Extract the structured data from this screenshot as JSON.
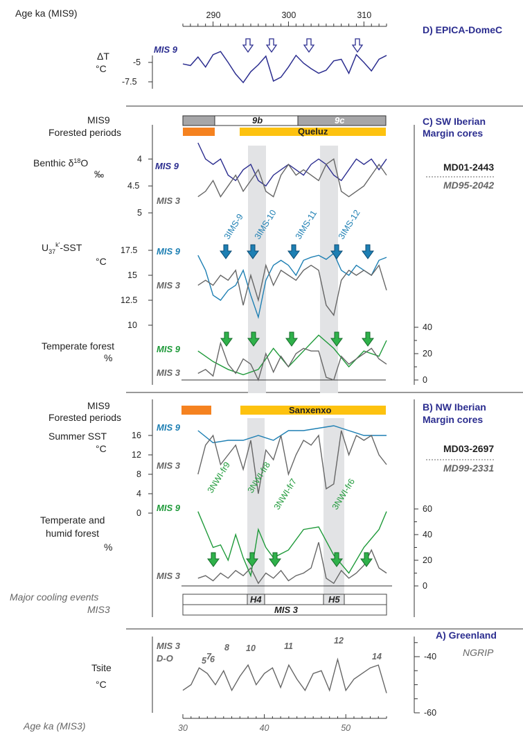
{
  "figure": {
    "panel_d_title": "D) EPICA-DomeC",
    "panel_c_title_1": "C) SW Iberian",
    "panel_c_title_2": "Margin cores",
    "panel_b_title_1": "B) NW Iberian",
    "panel_b_title_2": "Margin cores",
    "panel_a_title": "A) Greenland",
    "ngrip": "NGRIP",
    "core_md01": "MD01-2443",
    "core_md95": "MD95-2042",
    "core_md03": "MD03-2697",
    "core_md99": "MD99-2331",
    "age_mis9": "Age ka (MIS9)",
    "age_mis3": "Age ka (MIS3)",
    "dt_label": "ΔT",
    "degc": "°C",
    "mis9_fp_1": "MIS9",
    "mis9_fp_2": "Forested periods",
    "benthic_label": "Benthic δ18O",
    "permil": "‰",
    "sst_label": "U37k'-SST",
    "temp_forest": "Temperate forest",
    "percent": "%",
    "summer_sst": "Summer SST",
    "th_forest_1": "Temperate and",
    "th_forest_2": "humid forest",
    "major_cooling_1": "Major cooling events",
    "major_cooling_2": "MIS3",
    "tsite": "Tsite",
    "mis9": "MIS 9",
    "mis3": "MIS 3",
    "mis3_do_1": "MIS 3",
    "mis3_do_2": "D-O",
    "band_9b": "9b",
    "band_9c": "9c",
    "queluz": "Queluz",
    "sanxenxo": "Sanxenxo",
    "h4": "H4",
    "h5": "H5"
  },
  "chart_data": [
    {
      "type": "line",
      "panel": "D) EPICA-DomeC",
      "ylabel": "ΔT °C",
      "x_axis": "Age ka (MIS9)",
      "xlim": [
        286,
        314
      ],
      "x_ticks": [
        290,
        300,
        310
      ],
      "y_ticks": [
        -5,
        -7.5
      ],
      "series": [
        {
          "name": "MIS 9",
          "color": "#2b2d8f",
          "x": [
            286,
            287,
            288,
            289,
            290,
            291,
            292,
            293,
            294,
            295,
            296,
            297,
            298,
            299,
            300,
            301,
            302,
            303,
            304,
            305,
            306,
            307,
            308,
            309,
            310,
            311,
            312,
            313
          ],
          "values": [
            -5.2,
            -5.4,
            -4.3,
            -5.6,
            -4.0,
            -3.6,
            -5.0,
            -6.5,
            -7.6,
            -6.2,
            -5.3,
            -4.2,
            -7.4,
            -6.9,
            -5.6,
            -4.1,
            -5.1,
            -5.8,
            -6.4,
            -6.0,
            -4.8,
            -4.6,
            -6.4,
            -4.0,
            -5.0,
            -6.1,
            -4.6,
            -4.1
          ]
        }
      ],
      "annotations": [
        "cooling-arrow 293",
        "cooling-arrow 297",
        "cooling-arrow 302",
        "cooling-arrow 308"
      ]
    },
    {
      "type": "line",
      "panel": "C) SW Iberian Margin cores",
      "ylabel": "Benthic δ18O ‰",
      "y_ticks": [
        4,
        4.5,
        5
      ],
      "series": [
        {
          "name": "MIS 9",
          "color": "#2b2d8f",
          "x": [
            288,
            289,
            290,
            291,
            292,
            293,
            294,
            295,
            296,
            297,
            298,
            299,
            300,
            301,
            302,
            303,
            304,
            305,
            306,
            307,
            308,
            309,
            310,
            311,
            312,
            313
          ],
          "values": [
            3.7,
            4.0,
            4.1,
            4.0,
            4.3,
            4.4,
            4.2,
            4.1,
            4.4,
            4.5,
            4.3,
            4.2,
            4.1,
            4.2,
            4.3,
            4.1,
            4.0,
            4.1,
            4.3,
            4.4,
            4.2,
            4.0,
            4.1,
            4.0,
            4.2,
            4.0
          ]
        },
        {
          "name": "MIS 3",
          "color": "#666666",
          "x": [
            288,
            289,
            290,
            291,
            292,
            293,
            294,
            295,
            296,
            297,
            298,
            299,
            300,
            301,
            302,
            303,
            304,
            305,
            306,
            307,
            308,
            309,
            310,
            311,
            312,
            313
          ],
          "values": [
            4.7,
            4.6,
            4.4,
            4.7,
            4.5,
            4.3,
            4.6,
            4.4,
            4.2,
            4.6,
            4.7,
            4.3,
            4.1,
            4.3,
            4.2,
            4.3,
            4.4,
            4.1,
            4.0,
            4.6,
            4.7,
            4.6,
            4.5,
            4.3,
            4.1,
            4.3
          ]
        }
      ]
    },
    {
      "type": "line",
      "panel": "C) SW Iberian Margin cores",
      "ylabel": "U37k'-SST °C",
      "y_ticks": [
        17.5,
        15,
        12.5,
        10
      ],
      "series": [
        {
          "name": "MIS 9",
          "color": "#1d7fb3",
          "x": [
            288,
            289,
            290,
            291,
            292,
            293,
            294,
            295,
            296,
            297,
            298,
            299,
            300,
            301,
            302,
            303,
            304,
            305,
            306,
            307,
            308,
            309,
            310,
            311,
            312,
            313
          ],
          "values": [
            17.0,
            15.5,
            13.0,
            12.5,
            13.5,
            14.0,
            15.5,
            13.0,
            10.8,
            14.5,
            16.0,
            16.5,
            16.0,
            15.0,
            16.5,
            16.8,
            17.0,
            16.6,
            17.2,
            15.5,
            15.0,
            16.0,
            15.5,
            15.0,
            16.5,
            16.8
          ]
        },
        {
          "name": "MIS 3",
          "color": "#666666",
          "x": [
            288,
            289,
            290,
            291,
            292,
            293,
            294,
            295,
            296,
            297,
            298,
            299,
            300,
            301,
            302,
            303,
            304,
            305,
            306,
            307,
            308,
            309,
            310,
            311,
            312,
            313
          ],
          "values": [
            14.0,
            14.5,
            14.0,
            15.0,
            14.5,
            15.5,
            12.0,
            15.0,
            12.5,
            16.0,
            14.0,
            15.5,
            15.0,
            14.5,
            15.5,
            16.0,
            15.5,
            12.0,
            11.0,
            14.5,
            15.5,
            15.0,
            15.5,
            15.0,
            16.0,
            13.5
          ]
        }
      ],
      "annotations": [
        "3IMS-9",
        "3IMS-10",
        "3IMS-11",
        "3IMS-12"
      ]
    },
    {
      "type": "line",
      "panel": "C) SW Iberian Margin cores",
      "ylabel": "Temperate forest %",
      "y_ticks": [
        0,
        20,
        40
      ],
      "series": [
        {
          "name": "MIS 9",
          "color": "#1f9a3a",
          "x": [
            288,
            290,
            292,
            294,
            296,
            298,
            300,
            302,
            304,
            306,
            308,
            310,
            312,
            313
          ],
          "values": [
            22,
            14,
            8,
            4,
            8,
            24,
            10,
            22,
            34,
            24,
            10,
            22,
            18,
            30
          ]
        },
        {
          "name": "MIS 3",
          "color": "#666666",
          "x": [
            288,
            289,
            290,
            291,
            292,
            293,
            294,
            295,
            296,
            297,
            298,
            299,
            300,
            301,
            302,
            303,
            304,
            305,
            306,
            307,
            308,
            309,
            310,
            311,
            312,
            313
          ],
          "values": [
            5,
            8,
            3,
            28,
            12,
            5,
            16,
            12,
            0,
            20,
            6,
            18,
            10,
            20,
            24,
            22,
            22,
            2,
            0,
            18,
            12,
            16,
            20,
            24,
            16,
            12
          ]
        }
      ]
    },
    {
      "type": "line",
      "panel": "B) NW Iberian Margin cores",
      "ylabel": "Summer SST °C",
      "y_ticks": [
        16,
        12,
        8,
        4,
        0
      ],
      "series": [
        {
          "name": "MIS 9",
          "color": "#1d7fb3",
          "x": [
            288,
            290,
            292,
            294,
            296,
            298,
            300,
            302,
            304,
            306,
            308,
            310,
            312,
            313
          ],
          "values": [
            17,
            14.5,
            15,
            15,
            16,
            15,
            17,
            17,
            17.5,
            18,
            17,
            16,
            16,
            16
          ]
        },
        {
          "name": "MIS 3",
          "color": "#666666",
          "x": [
            288,
            289,
            290,
            291,
            292,
            293,
            294,
            295,
            296,
            297,
            298,
            299,
            300,
            301,
            302,
            303,
            304,
            305,
            306,
            307,
            308,
            309,
            310,
            311,
            312,
            313
          ],
          "values": [
            8,
            14,
            16,
            10,
            12,
            14,
            9,
            15,
            4,
            13,
            11,
            16,
            8,
            12,
            15,
            14,
            16,
            5,
            6,
            17,
            12,
            16,
            15,
            16,
            12,
            10
          ]
        }
      ]
    },
    {
      "type": "line",
      "panel": "B) NW Iberian Margin cores",
      "ylabel": "Temperate and humid forest %",
      "y_ticks": [
        0,
        20,
        40,
        60
      ],
      "series": [
        {
          "name": "MIS 9",
          "color": "#1f9a3a",
          "x": [
            288,
            289,
            290,
            291,
            292,
            293,
            294,
            295,
            296,
            297,
            298,
            300,
            302,
            304,
            306,
            308,
            310,
            312,
            313
          ],
          "values": [
            58,
            44,
            30,
            32,
            20,
            40,
            22,
            8,
            44,
            30,
            22,
            28,
            44,
            46,
            24,
            10,
            30,
            44,
            58
          ]
        },
        {
          "name": "MIS 3",
          "color": "#666666",
          "x": [
            288,
            289,
            290,
            291,
            292,
            293,
            294,
            295,
            296,
            297,
            298,
            299,
            300,
            301,
            302,
            303,
            304,
            305,
            306,
            307,
            308,
            309,
            310,
            311,
            312,
            313
          ],
          "values": [
            6,
            8,
            4,
            10,
            6,
            12,
            8,
            14,
            2,
            10,
            6,
            12,
            4,
            8,
            10,
            14,
            34,
            6,
            2,
            12,
            6,
            10,
            16,
            28,
            14,
            10
          ]
        }
      ],
      "annotations": [
        "3NWI-fr9",
        "3NWI-fr8",
        "3NWI-fr7",
        "3NWI-fr6"
      ]
    },
    {
      "type": "line",
      "panel": "A) Greenland",
      "ylabel": "Tsite °C",
      "x_axis": "Age ka (MIS3)",
      "xlim": [
        30,
        55
      ],
      "x_ticks": [
        30,
        40,
        50
      ],
      "y_ticks": [
        -40,
        -60
      ],
      "series": [
        {
          "name": "MIS 3 D-O",
          "color": "#666666",
          "x": [
            30,
            31,
            32,
            33,
            34,
            35,
            36,
            37,
            38,
            39,
            40,
            41,
            42,
            43,
            44,
            45,
            46,
            47,
            48,
            49,
            50,
            51,
            52,
            53,
            54,
            55
          ],
          "values": [
            -52,
            -50,
            -44,
            -46,
            -50,
            -45,
            -52,
            -47,
            -43,
            -50,
            -46,
            -44,
            -51,
            -43,
            -48,
            -52,
            -46,
            -45,
            -52,
            -41,
            -52,
            -48,
            -46,
            -44,
            -43,
            -53
          ]
        }
      ],
      "annotations": [
        "5",
        "6",
        "7",
        "8",
        "10",
        "11",
        "12",
        "14"
      ]
    }
  ]
}
